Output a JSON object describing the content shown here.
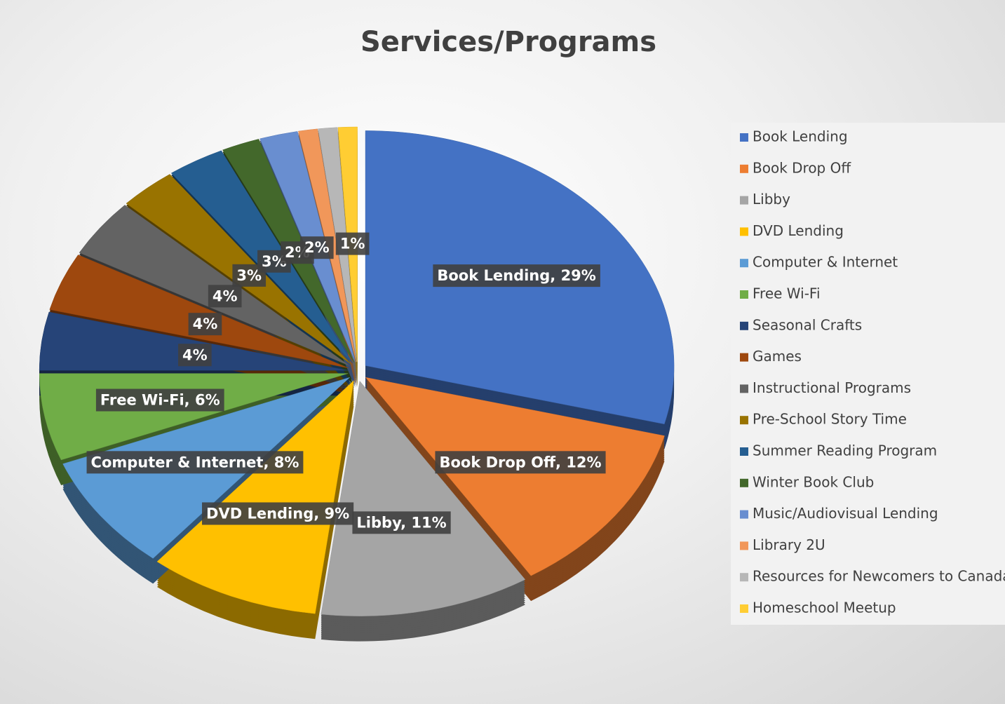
{
  "chart_data": {
    "type": "pie",
    "title": "Services/Programs",
    "categories": [
      "Book Lending",
      "Book Drop Off",
      "Libby",
      "DVD Lending",
      "Computer & Internet",
      "Free Wi-Fi",
      "Seasonal Crafts",
      "Games",
      "Instructional Programs",
      "Pre-School Story Time",
      "Summer Reading Program",
      "Winter Book Club",
      "Music/Audiovisual Lending",
      "Library 2U",
      "Resources for Newcomers to Canada",
      "Homeschool Meetup"
    ],
    "values": [
      29,
      12,
      11,
      9,
      8,
      6,
      4,
      4,
      4,
      3,
      3,
      2,
      2,
      1,
      1,
      1
    ],
    "value_labels": [
      "Book Lending, 29%",
      "Book Drop Off, 12%",
      "Libby, 11%",
      "DVD Lending, 9%",
      "Computer & Internet, 8%",
      "Free Wi-Fi, 6%",
      "4%",
      "4%",
      "4%",
      "3%",
      "3%",
      "2%",
      "2%",
      null,
      null,
      "1%"
    ],
    "colors": [
      "#4472c4",
      "#ed7d31",
      "#a5a5a5",
      "#ffc000",
      "#5b9bd5",
      "#70ad47",
      "#264478",
      "#9e480e",
      "#636363",
      "#997300",
      "#255e91",
      "#43682b",
      "#698ed0",
      "#f1975a",
      "#b7b7b7",
      "#ffcd33"
    ],
    "legend": "right"
  }
}
